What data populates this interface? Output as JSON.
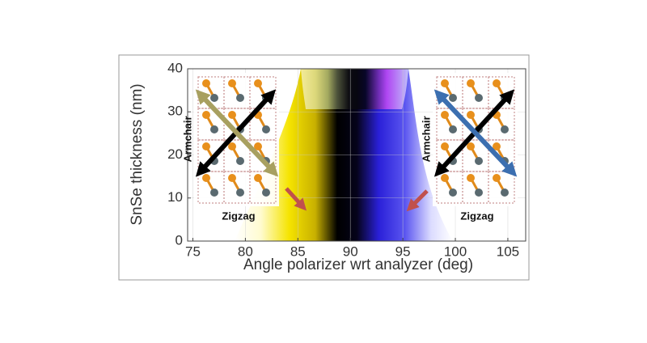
{
  "chart_data": {
    "type": "colormap",
    "xlabel": "Angle polarizer wrt analyzer (deg)",
    "ylabel": "SnSe thickness (nm)",
    "xlim": [
      74.5,
      106.7
    ],
    "xticks": [
      75,
      80,
      85,
      90,
      95,
      100,
      105
    ],
    "ylim": [
      0,
      40
    ],
    "yticks": [
      0,
      10,
      20,
      30,
      40
    ],
    "grid": true,
    "annotations": [
      "Armchair",
      "Zigzag",
      "Armchair",
      "Zigzag"
    ]
  }
}
